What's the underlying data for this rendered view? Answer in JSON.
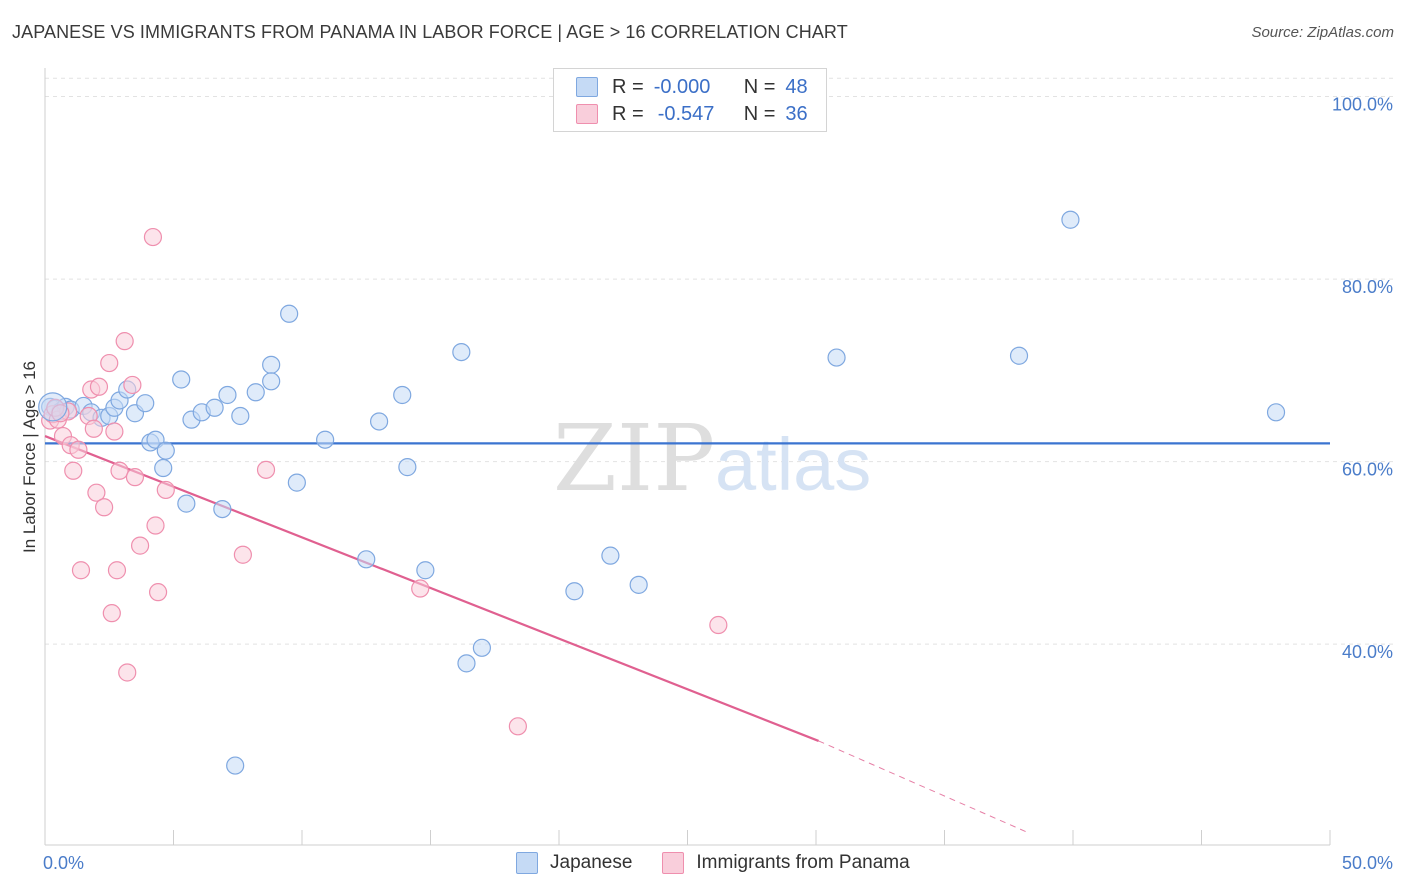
{
  "title": "JAPANESE VS IMMIGRANTS FROM PANAMA IN LABOR FORCE | AGE > 16 CORRELATION CHART",
  "source": "Source: ZipAtlas.com",
  "watermark": {
    "zip": "ZIP",
    "atlas": "atlas"
  },
  "legend": {
    "rows": [
      {
        "r_label": "R =",
        "r_value": "-0.000",
        "n_label": "N =",
        "n_value": "48",
        "color": "#aac8f0"
      },
      {
        "r_label": "R =",
        "r_value": "-0.547",
        "n_label": "N =",
        "n_value": "36",
        "color": "#f6b8cb"
      }
    ]
  },
  "bottom_legend": [
    {
      "label": "Japanese",
      "color": "#aac8f0"
    },
    {
      "label": "Immigrants from Panama",
      "color": "#f6b8cb"
    }
  ],
  "chart_data": {
    "type": "scatter",
    "title": "JAPANESE VS IMMIGRANTS FROM PANAMA IN LABOR FORCE | AGE > 16 CORRELATION CHART",
    "xlabel": "",
    "ylabel": "In Labor Force | Age > 16",
    "xlim": [
      0,
      50
    ],
    "ylim": [
      18,
      104
    ],
    "x_tick_labels": [
      "0.0%",
      "50.0%"
    ],
    "y_ticks": [
      40,
      60,
      80,
      100
    ],
    "y_tick_labels": [
      "40.0%",
      "60.0%",
      "80.0%",
      "100.0%"
    ],
    "grid": true,
    "series": [
      {
        "name": "Japanese",
        "color": "#7fa8e0",
        "fill": "#c5daf5",
        "trend": {
          "x": [
            0,
            50
          ],
          "y": [
            62.0,
            62.0
          ],
          "color": "#3b74d0"
        },
        "points": [
          [
            0.2,
            66.0
          ],
          [
            0.4,
            65.8
          ],
          [
            0.6,
            65.5
          ],
          [
            0.8,
            66.0
          ],
          [
            1.0,
            65.7
          ],
          [
            1.5,
            66.1
          ],
          [
            1.8,
            65.4
          ],
          [
            2.2,
            64.8
          ],
          [
            2.5,
            65.0
          ],
          [
            2.7,
            65.9
          ],
          [
            2.9,
            66.7
          ],
          [
            3.2,
            67.9
          ],
          [
            3.5,
            65.3
          ],
          [
            3.9,
            66.4
          ],
          [
            4.1,
            62.1
          ],
          [
            4.3,
            62.4
          ],
          [
            4.7,
            61.2
          ],
          [
            4.6,
            59.3
          ],
          [
            5.3,
            69.0
          ],
          [
            5.5,
            55.4
          ],
          [
            5.7,
            64.6
          ],
          [
            6.1,
            65.4
          ],
          [
            6.6,
            65.9
          ],
          [
            6.9,
            54.8
          ],
          [
            7.1,
            67.3
          ],
          [
            7.4,
            26.7
          ],
          [
            7.6,
            65.0
          ],
          [
            8.2,
            67.6
          ],
          [
            8.8,
            70.6
          ],
          [
            8.8,
            68.8
          ],
          [
            9.5,
            76.2
          ],
          [
            9.8,
            57.7
          ],
          [
            10.9,
            62.4
          ],
          [
            12.5,
            49.3
          ],
          [
            13.0,
            64.4
          ],
          [
            13.9,
            67.3
          ],
          [
            14.1,
            59.4
          ],
          [
            14.8,
            48.1
          ],
          [
            16.2,
            72.0
          ],
          [
            16.4,
            37.9
          ],
          [
            17.0,
            39.6
          ],
          [
            20.6,
            45.8
          ],
          [
            22.0,
            49.7
          ],
          [
            23.1,
            46.5
          ],
          [
            30.8,
            71.4
          ],
          [
            37.9,
            71.6
          ],
          [
            39.9,
            86.5
          ],
          [
            47.9,
            65.4
          ]
        ]
      },
      {
        "name": "Immigrants from Panama",
        "color": "#ef8fae",
        "fill": "#f9cedb",
        "trend": {
          "x": [
            0,
            30.1
          ],
          "y": [
            62.8,
            29.4
          ],
          "dash_to": [
            38.3,
            19.3
          ],
          "color": "#e06090"
        },
        "points": [
          [
            0.2,
            64.5
          ],
          [
            0.3,
            65.2
          ],
          [
            0.5,
            64.6
          ],
          [
            0.7,
            62.8
          ],
          [
            0.9,
            65.5
          ],
          [
            1.0,
            61.8
          ],
          [
            1.1,
            59.0
          ],
          [
            1.3,
            61.3
          ],
          [
            1.4,
            48.1
          ],
          [
            1.7,
            65.0
          ],
          [
            1.8,
            67.9
          ],
          [
            1.9,
            63.6
          ],
          [
            2.0,
            56.6
          ],
          [
            2.1,
            68.2
          ],
          [
            2.3,
            55.0
          ],
          [
            2.5,
            70.8
          ],
          [
            2.6,
            43.4
          ],
          [
            2.7,
            63.3
          ],
          [
            2.8,
            48.1
          ],
          [
            2.9,
            59.0
          ],
          [
            3.1,
            73.2
          ],
          [
            3.2,
            36.9
          ],
          [
            3.4,
            68.4
          ],
          [
            3.5,
            58.3
          ],
          [
            3.7,
            50.8
          ],
          [
            4.2,
            84.6
          ],
          [
            4.3,
            53.0
          ],
          [
            4.4,
            45.7
          ],
          [
            4.7,
            56.9
          ],
          [
            7.7,
            49.8
          ],
          [
            8.6,
            59.1
          ],
          [
            14.6,
            46.1
          ],
          [
            18.4,
            31.0
          ],
          [
            26.2,
            42.1
          ],
          [
            0.4,
            65.9
          ],
          [
            0.6,
            65.3
          ]
        ]
      }
    ]
  }
}
